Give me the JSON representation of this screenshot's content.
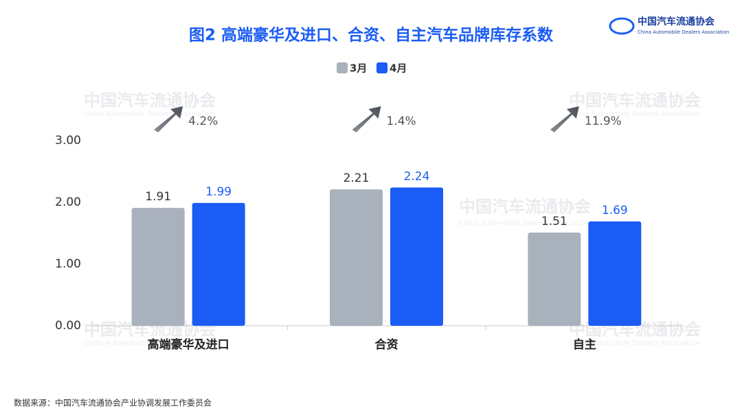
{
  "chart_data": {
    "type": "bar",
    "title": "图2  高端豪华及进口、合资、自主汽车品牌库存系数",
    "categories": [
      "高端豪华及进口",
      "合资",
      "自主"
    ],
    "series": [
      {
        "name": "3月",
        "color": "#a9b1bc",
        "label_color": "#333333",
        "values": [
          1.91,
          2.21,
          1.51
        ]
      },
      {
        "name": "4月",
        "color": "#1a5cf5",
        "label_color": "#1a5cf5",
        "values": [
          1.99,
          2.24,
          1.69
        ]
      }
    ],
    "ylim": [
      0,
      3
    ],
    "yticks": [
      {
        "value": 0,
        "label": "0.00"
      },
      {
        "value": 1,
        "label": "1.00"
      },
      {
        "value": 2,
        "label": "2.00"
      },
      {
        "value": 3,
        "label": "3.00"
      }
    ],
    "growth_labels": [
      "4.2%",
      "1.4%",
      "11.9%"
    ],
    "source": "数据来源：中国汽车流通协会产业协调发展工作委员会"
  },
  "logo": {
    "name_cn": "中国汽车流通协会",
    "name_en": "China Automobile Dealers Association"
  }
}
